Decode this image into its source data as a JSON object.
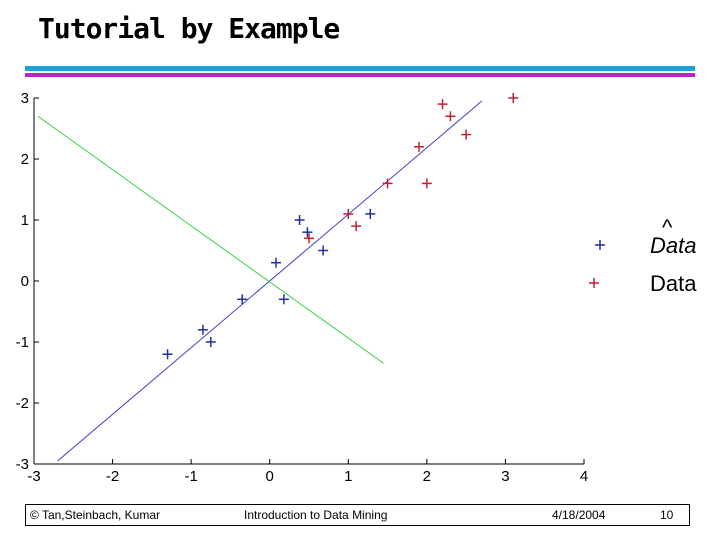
{
  "slide": {
    "title": "Tutorial by Example",
    "footer": {
      "copyright": "© Tan,Steinbach, Kumar",
      "course": "Introduction to Data Mining",
      "date": "4/18/2004",
      "page": "10"
    }
  },
  "colors": {
    "bar_top": "#1ea0d8",
    "bar_bottom": "#c020c8",
    "class_blue": "#2030a0",
    "class_red": "#c02030",
    "line_blue": "#4040c8",
    "line_green": "#40d040"
  },
  "chart_data": {
    "type": "scatter",
    "xlim": [
      -3,
      4
    ],
    "ylim": [
      -3,
      3
    ],
    "x_ticks": [
      "-3",
      "-2",
      "-1",
      "0",
      "1",
      "2",
      "3",
      "4"
    ],
    "y_ticks": [
      "3",
      "2",
      "1",
      "0",
      "-1",
      "-2",
      "-3"
    ],
    "grid": false,
    "legend_position": "right",
    "legend": [
      {
        "label": "Data",
        "marker": "+",
        "color": "#2030a0",
        "italic": true,
        "hat": "^"
      },
      {
        "label": "Data",
        "marker": "+",
        "color": "#c02030",
        "italic": false
      }
    ],
    "series": [
      {
        "marker": "+",
        "color": "#2030a0",
        "points": [
          [
            -1.3,
            -1.2
          ],
          [
            -0.85,
            -0.8
          ],
          [
            -0.75,
            -1.0
          ],
          [
            -0.35,
            -0.3
          ],
          [
            0.08,
            0.3
          ],
          [
            0.18,
            -0.3
          ],
          [
            0.38,
            1.0
          ],
          [
            0.48,
            0.8
          ],
          [
            0.68,
            0.5
          ],
          [
            1.28,
            1.1
          ]
        ]
      },
      {
        "marker": "+",
        "color": "#c02030",
        "points": [
          [
            0.5,
            0.7
          ],
          [
            1.0,
            1.1
          ],
          [
            1.1,
            0.9
          ],
          [
            1.5,
            1.6
          ],
          [
            1.9,
            2.2
          ],
          [
            2.0,
            1.6
          ],
          [
            2.2,
            2.9
          ],
          [
            2.3,
            2.7
          ],
          [
            2.5,
            2.4
          ],
          [
            3.1,
            3.0
          ]
        ]
      }
    ],
    "lines": [
      {
        "color": "#4040c8",
        "from": [
          -2.7,
          -2.95
        ],
        "to": [
          2.7,
          2.95
        ]
      },
      {
        "color": "#40d040",
        "from": [
          -2.95,
          2.7
        ],
        "to": [
          1.45,
          -1.35
        ]
      }
    ]
  }
}
